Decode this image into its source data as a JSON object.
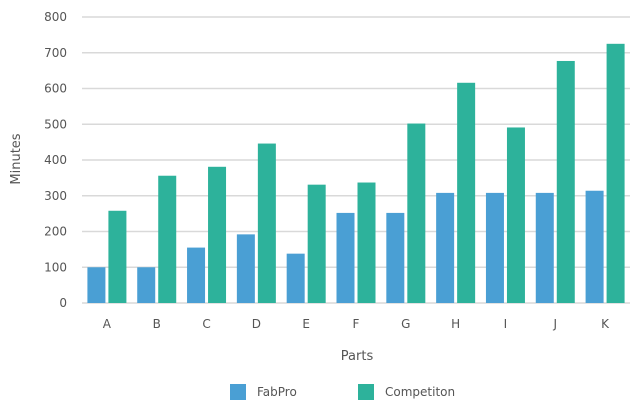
{
  "chart_data": {
    "type": "bar",
    "title": "",
    "xlabel": "Parts",
    "ylabel": "Minutes",
    "ylim": [
      0,
      800
    ],
    "yticks": [
      0,
      100,
      200,
      300,
      400,
      500,
      600,
      700,
      800
    ],
    "grid": true,
    "legend": "bottom",
    "categories": [
      "A",
      "B",
      "C",
      "D",
      "E",
      "F",
      "G",
      "H",
      "I",
      "J",
      "K"
    ],
    "series": [
      {
        "name": "FabPro",
        "color": "#4a9fd4",
        "values": [
          100,
          100,
          155,
          192,
          138,
          252,
          252,
          308,
          308,
          308,
          314
        ]
      },
      {
        "name": "Competiton",
        "color": "#2db29b",
        "values": [
          258,
          356,
          381,
          446,
          331,
          337,
          502,
          616,
          491,
          677,
          725
        ]
      }
    ]
  }
}
